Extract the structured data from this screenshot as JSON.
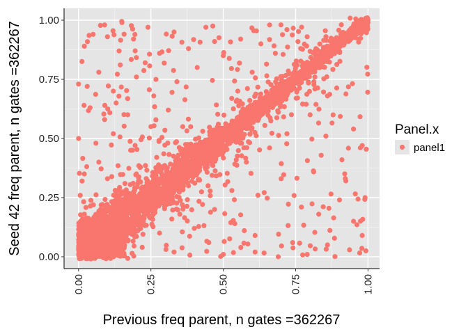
{
  "chart_data": {
    "type": "scatter",
    "xlabel": "Previous freq parent, n gates =362267",
    "ylabel": "Seed 42 freq parent, n gates =362267",
    "xlim": [
      -0.05,
      1.04
    ],
    "ylim": [
      -0.05,
      1.05
    ],
    "x_ticks": [
      0.0,
      0.25,
      0.5,
      0.75,
      1.0
    ],
    "y_ticks": [
      0.0,
      0.25,
      0.5,
      0.75,
      1.0
    ],
    "x_tick_labels": [
      "0.00",
      "0.25",
      "0.50",
      "0.75",
      "1.00"
    ],
    "y_tick_labels": [
      "0.00",
      "0.25",
      "0.50",
      "0.75",
      "1.00"
    ],
    "x_tick_label_rotation": "vertical",
    "grid": true,
    "panel_background": "#E5E5E5",
    "legend": {
      "title": "Panel.x",
      "placement": "right",
      "entries": [
        {
          "label": "panel1",
          "color": "#F8766D"
        }
      ]
    },
    "series": [
      {
        "name": "panel1",
        "color": "#F8766D",
        "description_of_density": "dense diagonal band y≈x from 0 to 1, widest at low values, sparse scatter off-diagonal",
        "points": [
          {
            "x": 0.15,
            "y": 0.99
          },
          {
            "x": 0.09,
            "y": 0.98
          },
          {
            "x": 0.24,
            "y": 0.97
          },
          {
            "x": 0.44,
            "y": 0.97
          },
          {
            "x": 0.66,
            "y": 0.98
          },
          {
            "x": 0.72,
            "y": 0.96
          },
          {
            "x": 0.05,
            "y": 0.94
          },
          {
            "x": 0.1,
            "y": 0.93
          },
          {
            "x": 0.19,
            "y": 0.92
          },
          {
            "x": 0.33,
            "y": 0.95
          },
          {
            "x": 0.47,
            "y": 0.91
          },
          {
            "x": 0.56,
            "y": 0.92
          },
          {
            "x": 0.63,
            "y": 0.9
          },
          {
            "x": 0.79,
            "y": 0.93
          },
          {
            "x": 0.02,
            "y": 0.89
          },
          {
            "x": 0.14,
            "y": 0.87
          },
          {
            "x": 0.28,
            "y": 0.86
          },
          {
            "x": 0.38,
            "y": 0.88
          },
          {
            "x": 0.5,
            "y": 0.85
          },
          {
            "x": 0.0,
            "y": 0.73
          },
          {
            "x": 0.03,
            "y": 0.72
          },
          {
            "x": 0.07,
            "y": 0.78
          },
          {
            "x": 0.12,
            "y": 0.7
          },
          {
            "x": 0.2,
            "y": 0.76
          },
          {
            "x": 0.26,
            "y": 0.68
          },
          {
            "x": 0.34,
            "y": 0.74
          },
          {
            "x": 0.41,
            "y": 0.8
          },
          {
            "x": 0.04,
            "y": 0.63
          },
          {
            "x": 0.09,
            "y": 0.58
          },
          {
            "x": 0.17,
            "y": 0.6
          },
          {
            "x": 0.25,
            "y": 0.55
          },
          {
            "x": 0.31,
            "y": 0.62
          },
          {
            "x": 0.0,
            "y": 0.5
          },
          {
            "x": 0.06,
            "y": 0.48
          },
          {
            "x": 0.12,
            "y": 0.52
          },
          {
            "x": 0.18,
            "y": 0.45
          },
          {
            "x": 0.07,
            "y": 0.4
          },
          {
            "x": 0.02,
            "y": 0.35
          },
          {
            "x": 0.1,
            "y": 0.33
          },
          {
            "x": 0.58,
            "y": 0.4
          },
          {
            "x": 0.66,
            "y": 0.46
          },
          {
            "x": 0.72,
            "y": 0.52
          },
          {
            "x": 0.8,
            "y": 0.6
          },
          {
            "x": 0.86,
            "y": 0.68
          },
          {
            "x": 0.95,
            "y": 0.54
          },
          {
            "x": 0.98,
            "y": 0.47
          },
          {
            "x": 0.91,
            "y": 0.41
          },
          {
            "x": 0.99,
            "y": 0.25
          },
          {
            "x": 0.77,
            "y": 0.21
          },
          {
            "x": 0.83,
            "y": 0.18
          },
          {
            "x": 0.95,
            "y": 0.15
          },
          {
            "x": 0.62,
            "y": 0.26
          },
          {
            "x": 0.7,
            "y": 0.33
          },
          {
            "x": 0.54,
            "y": 0.14
          },
          {
            "x": 0.61,
            "y": 0.09
          },
          {
            "x": 0.74,
            "y": 0.06
          },
          {
            "x": 0.86,
            "y": 0.05
          },
          {
            "x": 0.98,
            "y": 0.09
          },
          {
            "x": 0.45,
            "y": 0.06
          },
          {
            "x": 0.5,
            "y": 0.01
          },
          {
            "x": 0.61,
            "y": 0.02
          },
          {
            "x": 0.69,
            "y": 0.0
          },
          {
            "x": 0.79,
            "y": 0.01
          },
          {
            "x": 0.33,
            "y": 0.02
          },
          {
            "x": 0.4,
            "y": 0.12
          },
          {
            "x": 0.47,
            "y": 0.2
          },
          {
            "x": 0.53,
            "y": 0.28
          },
          {
            "x": 0.38,
            "y": 0.3
          },
          {
            "x": 0.44,
            "y": 0.37
          },
          {
            "x": 0.22,
            "y": 0.04
          },
          {
            "x": 0.28,
            "y": 0.1
          },
          {
            "x": 0.35,
            "y": 0.18
          },
          {
            "x": 0.2,
            "y": 0.35
          },
          {
            "x": 0.27,
            "y": 0.42
          },
          {
            "x": 0.36,
            "y": 0.55
          },
          {
            "x": 0.55,
            "y": 0.7
          },
          {
            "x": 0.6,
            "y": 0.78
          },
          {
            "x": 0.68,
            "y": 0.86
          },
          {
            "x": 0.23,
            "y": 0.82
          },
          {
            "x": 0.13,
            "y": 0.65
          }
        ]
      }
    ]
  }
}
